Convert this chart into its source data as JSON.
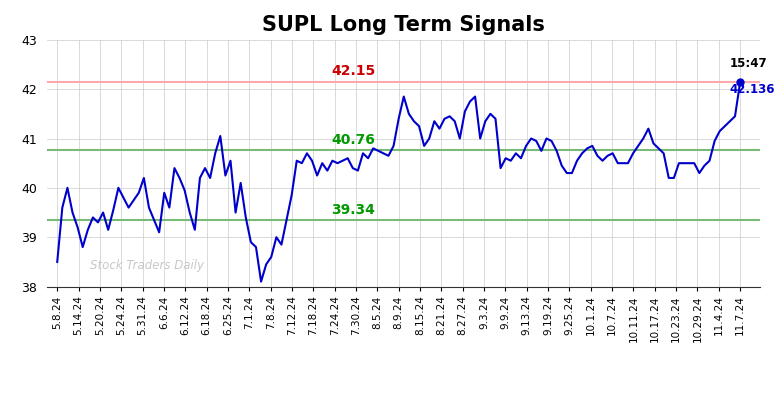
{
  "title": "SUPL Long Term Signals",
  "title_fontsize": 15,
  "title_fontweight": "bold",
  "watermark": "Stock Traders Daily",
  "x_labels": [
    "5.8.24",
    "5.14.24",
    "5.20.24",
    "5.24.24",
    "5.31.24",
    "6.6.24",
    "6.12.24",
    "6.18.24",
    "6.25.24",
    "7.1.24",
    "7.8.24",
    "7.12.24",
    "7.18.24",
    "7.24.24",
    "7.30.24",
    "8.5.24",
    "8.9.24",
    "8.15.24",
    "8.21.24",
    "8.27.24",
    "9.3.24",
    "9.9.24",
    "9.13.24",
    "9.19.24",
    "9.25.24",
    "10.1.24",
    "10.7.24",
    "10.11.24",
    "10.17.24",
    "10.23.24",
    "10.29.24",
    "11.4.24",
    "11.7.24"
  ],
  "y_values": [
    38.5,
    39.6,
    40.0,
    39.5,
    39.2,
    38.8,
    39.15,
    39.4,
    39.3,
    39.5,
    39.15,
    39.55,
    40.0,
    39.8,
    39.6,
    39.75,
    39.9,
    40.2,
    39.6,
    39.35,
    39.1,
    39.9,
    39.6,
    40.4,
    40.2,
    39.95,
    39.5,
    39.15,
    40.2,
    40.4,
    40.2,
    40.7,
    41.05,
    40.25,
    40.55,
    39.5,
    40.1,
    39.4,
    38.9,
    38.8,
    38.1,
    38.45,
    38.6,
    39.0,
    38.85,
    39.35,
    39.85,
    40.55,
    40.5,
    40.7,
    40.55,
    40.25,
    40.5,
    40.35,
    40.55,
    40.5,
    40.55,
    40.6,
    40.4,
    40.35,
    40.7,
    40.6,
    40.8,
    40.75,
    40.7,
    40.65,
    40.85,
    41.4,
    41.85,
    41.5,
    41.35,
    41.25,
    40.85,
    41.0,
    41.35,
    41.2,
    41.4,
    41.45,
    41.35,
    41.0,
    41.55,
    41.75,
    41.85,
    41.0,
    41.35,
    41.5,
    41.4,
    40.4,
    40.6,
    40.55,
    40.7,
    40.6,
    40.85,
    41.0,
    40.95,
    40.75,
    41.0,
    40.95,
    40.75,
    40.45,
    40.3,
    40.3,
    40.55,
    40.7,
    40.8,
    40.85,
    40.65,
    40.55,
    40.65,
    40.7,
    40.5,
    40.5,
    40.5,
    40.7,
    40.85,
    41.0,
    41.2,
    40.9,
    40.8,
    40.7,
    40.2,
    40.2,
    40.5,
    40.5,
    40.5,
    40.5,
    40.3,
    40.45,
    40.55,
    40.95,
    41.15,
    41.25,
    41.35,
    41.45,
    42.136
  ],
  "line_color": "#0000cc",
  "line_width": 1.5,
  "red_hline": 42.15,
  "green_hline_upper": 40.76,
  "green_hline_lower": 39.34,
  "red_hline_color": "#ffaaaa",
  "green_hline_color": "#77bb77",
  "red_label_color": "#cc0000",
  "green_label_color": "#009900",
  "last_price": 42.136,
  "last_time": "15:47",
  "last_dot_color": "#0000cc",
  "ylim_min": 38.0,
  "ylim_max": 43.0,
  "bg_color": "#ffffff",
  "grid_color": "#cccccc",
  "grid_linewidth": 0.5,
  "tick_fontsize": 7.5,
  "label_fontsize": 10
}
